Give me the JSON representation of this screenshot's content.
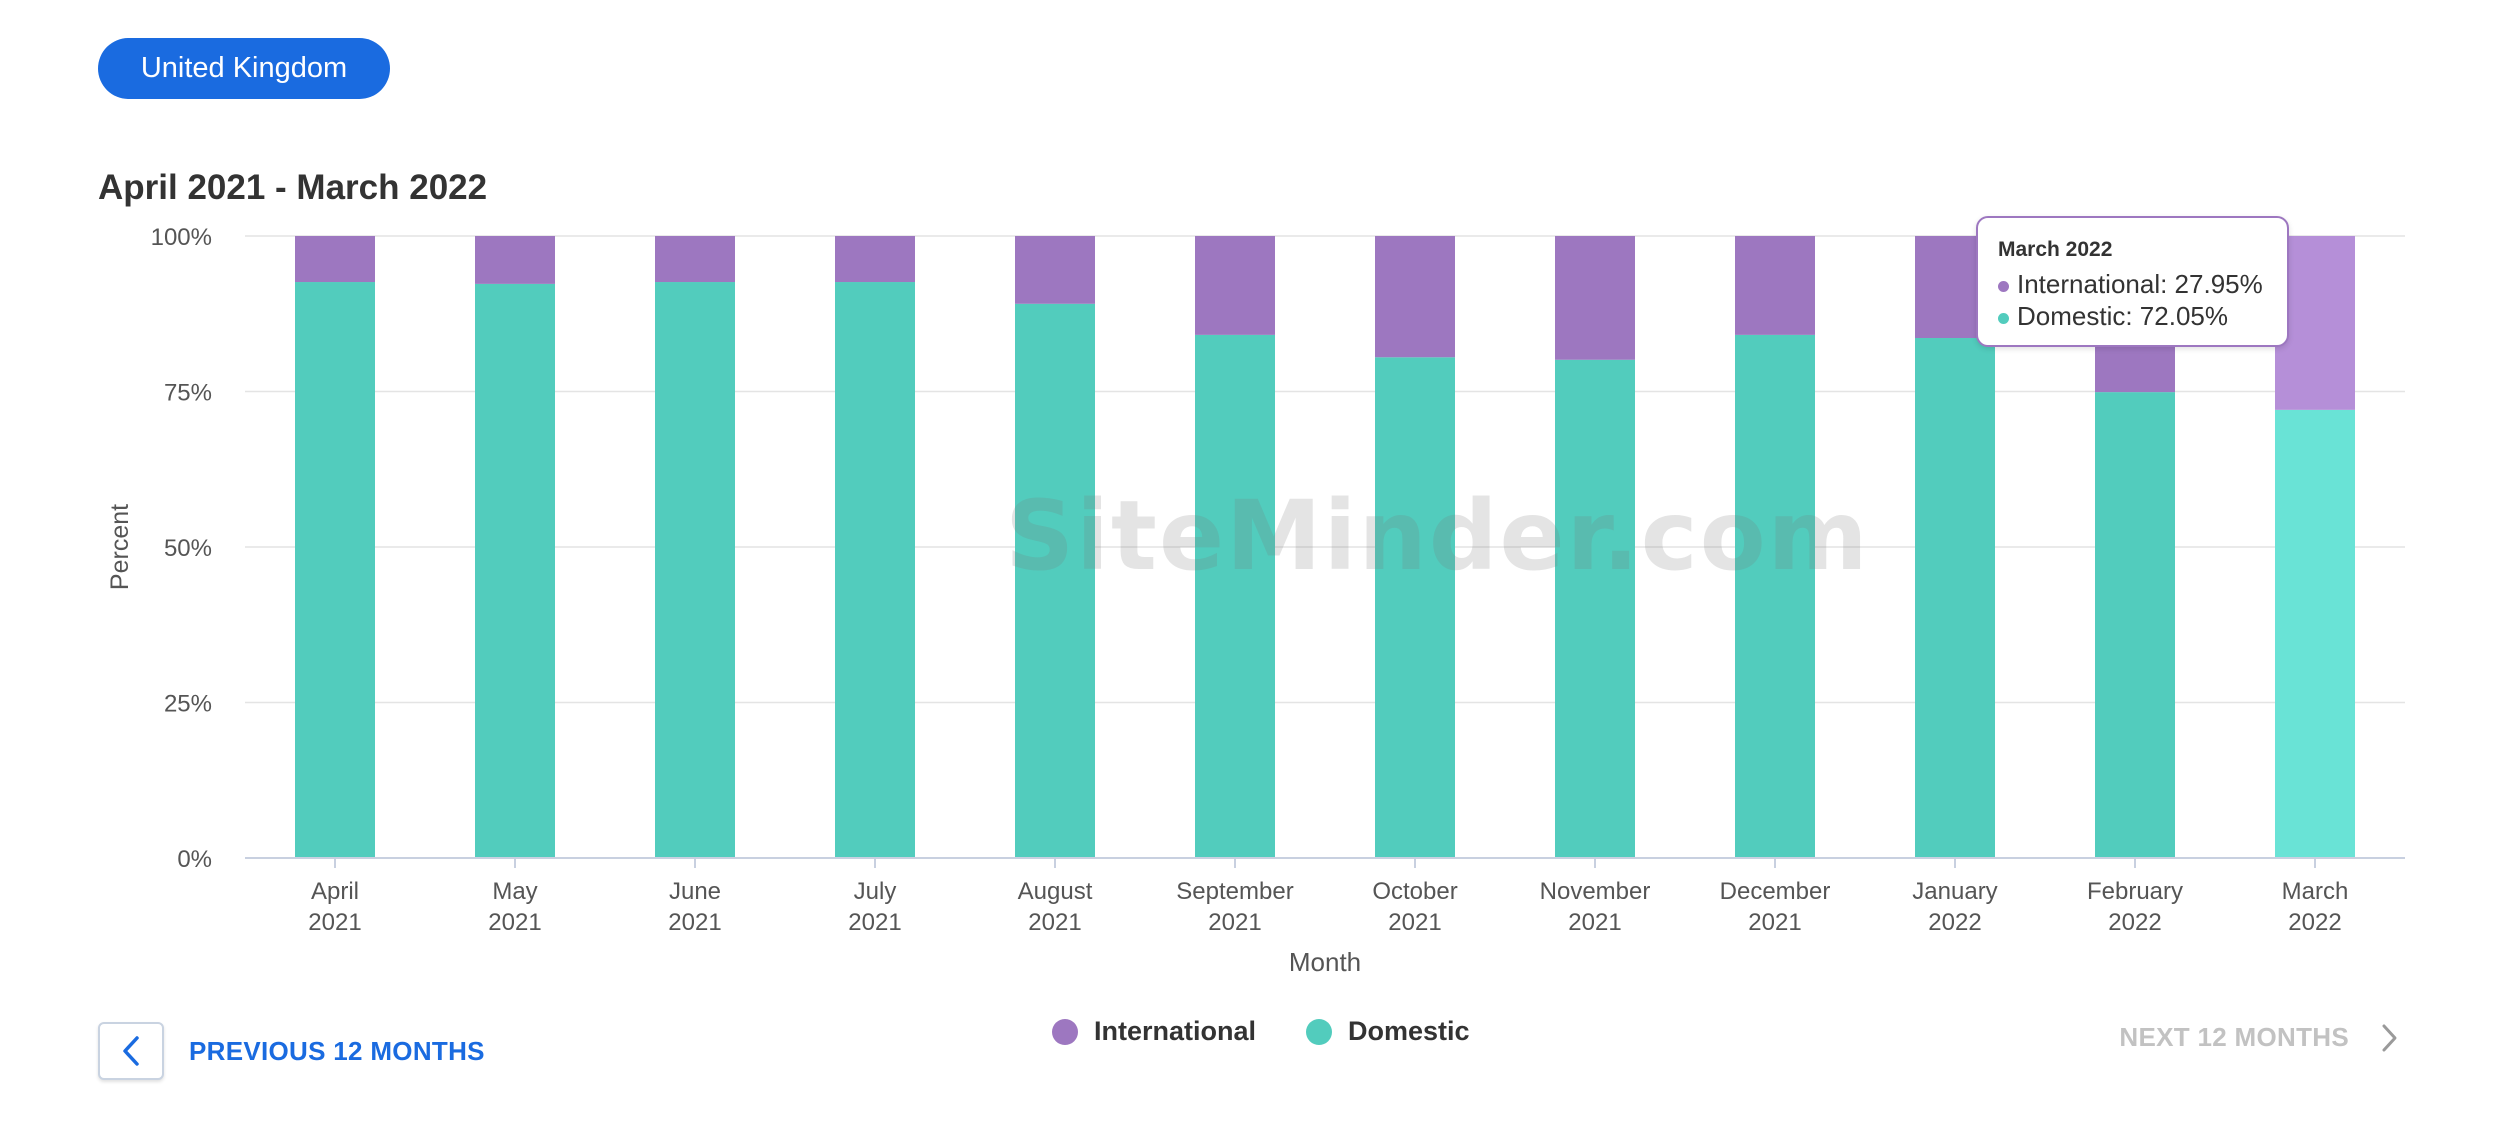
{
  "country_button": "United Kingdom",
  "chart_title": "April 2021 - March 2022",
  "watermark": "SiteMinder.com",
  "tooltip": {
    "title": "March 2022",
    "rows": [
      "International: 27.95%",
      "Domestic: 72.05%"
    ]
  },
  "legend": [
    {
      "label": "International",
      "color": "#9d77c0"
    },
    {
      "label": "Domestic",
      "color": "#52ccbd"
    }
  ],
  "nav": {
    "prev_label": "PREVIOUS 12 MONTHS",
    "next_label": "NEXT 12 MONTHS",
    "prev_icon": "chevron-left-icon",
    "next_icon": "chevron-right-icon"
  },
  "colors": {
    "accent": "#1a6be0",
    "international": "#9d77c0",
    "domestic": "#52ccbd",
    "international_highlight": "#b58fd8",
    "domestic_highlight": "#69e3d6"
  },
  "chart_data": {
    "type": "bar",
    "stacked": true,
    "title": "April 2021 - March 2022",
    "xlabel": "Month",
    "ylabel": "Percent",
    "ylim": [
      0,
      100
    ],
    "yticks": [
      "0%",
      "25%",
      "50%",
      "75%",
      "100%"
    ],
    "grid": true,
    "legend_position": "bottom",
    "highlighted_category": 11,
    "categories": [
      [
        "April",
        "2021"
      ],
      [
        "May",
        "2021"
      ],
      [
        "June",
        "2021"
      ],
      [
        "July",
        "2021"
      ],
      [
        "August",
        "2021"
      ],
      [
        "September",
        "2021"
      ],
      [
        "October",
        "2021"
      ],
      [
        "November",
        "2021"
      ],
      [
        "December",
        "2021"
      ],
      [
        "January",
        "2022"
      ],
      [
        "February",
        "2022"
      ],
      [
        "March",
        "2022"
      ]
    ],
    "series": [
      {
        "name": "Domestic",
        "values": [
          92.6,
          92.3,
          92.6,
          92.6,
          89.1,
          84.1,
          80.5,
          80.1,
          84.1,
          83.6,
          74.9,
          72.05
        ]
      },
      {
        "name": "International",
        "values": [
          7.4,
          7.7,
          7.4,
          7.4,
          10.9,
          15.9,
          19.5,
          19.9,
          15.9,
          16.4,
          25.1,
          27.95
        ]
      }
    ]
  }
}
